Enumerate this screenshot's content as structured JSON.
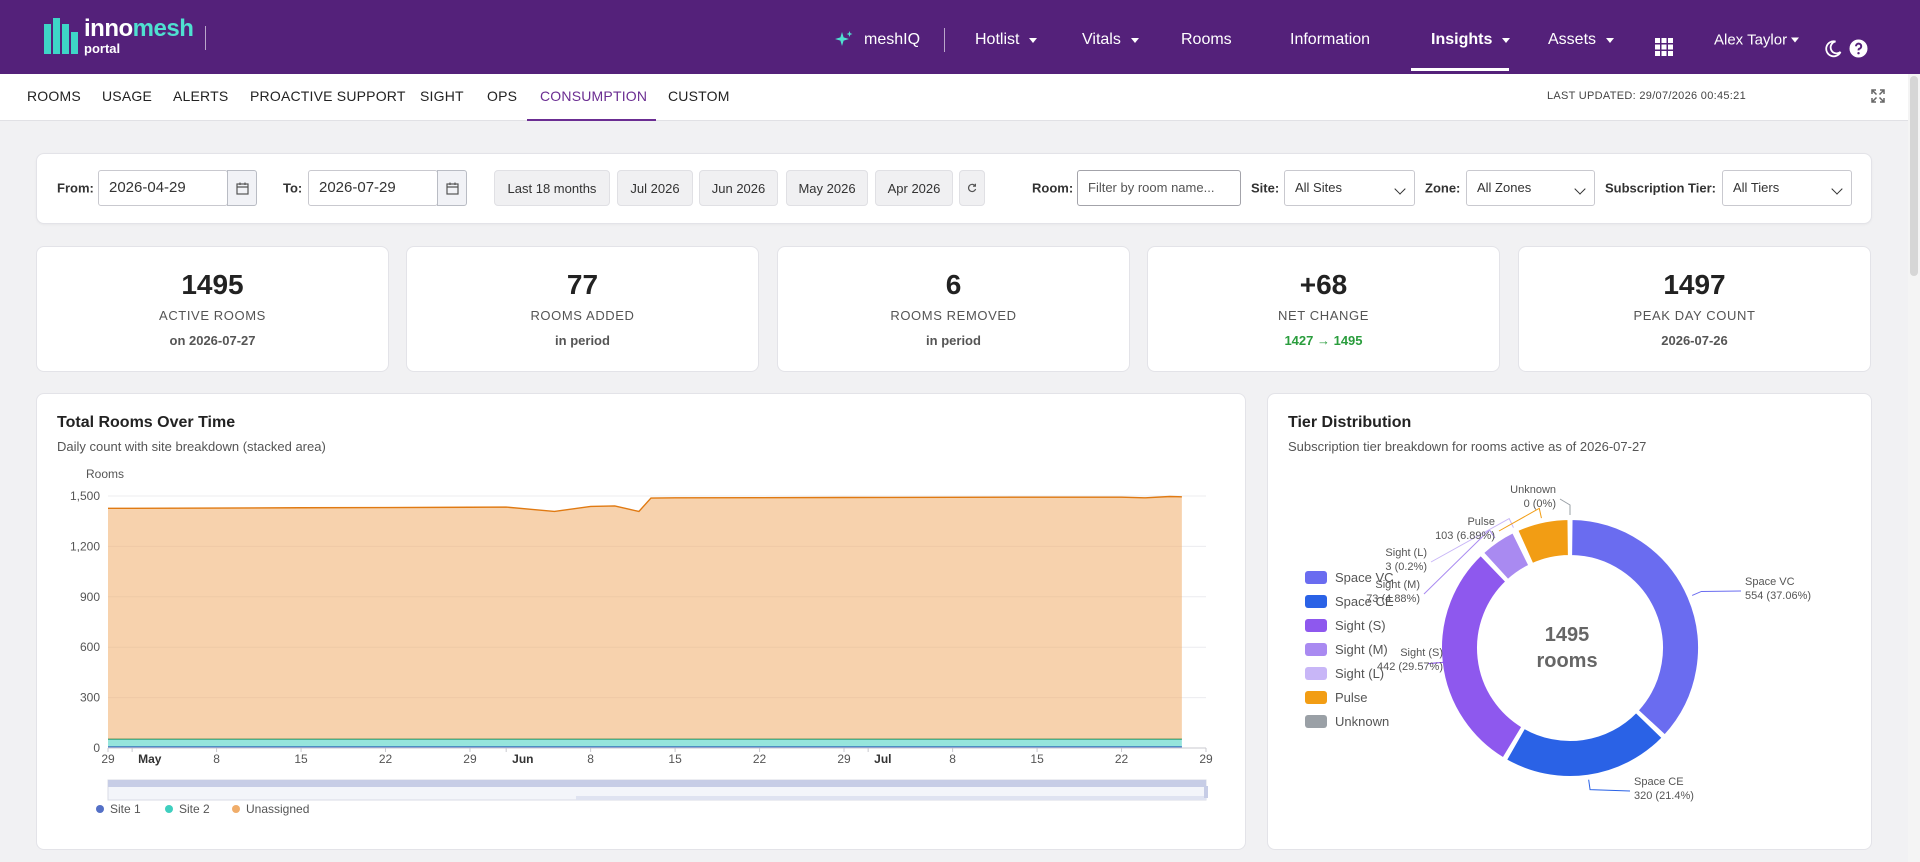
{
  "brand": {
    "name_a": "inno",
    "name_b": "mesh",
    "sub": "portal"
  },
  "topnav": {
    "meshiq": "meshIQ",
    "items": [
      {
        "label": "Hotlist",
        "dropdown": true
      },
      {
        "label": "Vitals",
        "dropdown": true
      },
      {
        "label": "Rooms",
        "dropdown": false
      },
      {
        "label": "Information",
        "dropdown": false
      },
      {
        "label": "Insights",
        "dropdown": true,
        "active": true
      },
      {
        "label": "Assets",
        "dropdown": true
      }
    ],
    "user": "Alex Taylor"
  },
  "subnav": {
    "items": [
      "ROOMS",
      "USAGE",
      "ALERTS",
      "PROACTIVE SUPPORT",
      "SIGHT",
      "OPS",
      "CONSUMPTION",
      "CUSTOM"
    ],
    "active": "CONSUMPTION",
    "last_updated": "LAST UPDATED: 29/07/2026 00:45:21"
  },
  "filters": {
    "from_label": "From:",
    "from_value": "2026-04-29",
    "to_label": "To:",
    "to_value": "2026-07-29",
    "presets": [
      "Last 18 months",
      "Jul 2026",
      "Jun 2026",
      "May 2026",
      "Apr 2026"
    ],
    "room_label": "Room:",
    "room_placeholder": "Filter by room name...",
    "site_label": "Site:",
    "site_value": "All Sites",
    "zone_label": "Zone:",
    "zone_value": "All Zones",
    "tier_label": "Subscription Tier:",
    "tier_value": "All Tiers"
  },
  "stats": [
    {
      "value": "1495",
      "label": "ACTIVE ROOMS",
      "sub": "on 2026-07-27"
    },
    {
      "value": "77",
      "label": "ROOMS ADDED",
      "sub": "in period"
    },
    {
      "value": "6",
      "label": "ROOMS REMOVED",
      "sub": "in period"
    },
    {
      "value": "+68",
      "label": "NET CHANGE",
      "sub": "1427 → 1495"
    },
    {
      "value": "1497",
      "label": "PEAK DAY COUNT",
      "sub": "2026-07-26"
    }
  ],
  "rooms_chart": {
    "title": "Total Rooms Over Time",
    "subtitle": "Daily count with site breakdown (stacked area)"
  },
  "tier_chart": {
    "title": "Tier Distribution",
    "subtitle": "Subscription tier breakdown for rooms active as of 2026-07-27",
    "center_value": "1495",
    "center_unit": "rooms"
  },
  "chart_data": [
    {
      "type": "area",
      "stacked": true,
      "ylabel": "Rooms",
      "ylim": [
        0,
        1500
      ],
      "yticks": [
        "0",
        "300",
        "600",
        "900",
        "1,200",
        "1,500"
      ],
      "xticks": [
        "29",
        "May",
        "8",
        "15",
        "22",
        "29",
        "Jun",
        "8",
        "15",
        "22",
        "29",
        "Jul",
        "8",
        "15",
        "22",
        "29"
      ],
      "x": [
        "2026-04-29",
        "2026-05-01",
        "2026-05-08",
        "2026-05-15",
        "2026-05-22",
        "2026-05-29",
        "2026-06-01",
        "2026-06-05",
        "2026-06-08",
        "2026-06-10",
        "2026-06-12",
        "2026-06-13",
        "2026-06-15",
        "2026-06-22",
        "2026-06-29",
        "2026-07-08",
        "2026-07-15",
        "2026-07-22",
        "2026-07-24",
        "2026-07-26",
        "2026-07-27"
      ],
      "series": [
        {
          "name": "Site 1",
          "color": "#5470c6",
          "values": [
            8,
            8,
            8,
            8,
            8,
            8,
            8,
            8,
            8,
            8,
            8,
            8,
            8,
            8,
            8,
            8,
            8,
            8,
            8,
            8,
            8
          ]
        },
        {
          "name": "Site 2",
          "color": "#3fcfbf",
          "values": [
            45,
            45,
            45,
            45,
            45,
            45,
            45,
            45,
            45,
            45,
            45,
            45,
            45,
            45,
            45,
            45,
            45,
            45,
            45,
            45,
            45
          ]
        },
        {
          "name": "Unassigned",
          "color": "#f0ad6a",
          "values": [
            1374,
            1374,
            1375,
            1377,
            1378,
            1380,
            1381,
            1355,
            1385,
            1388,
            1355,
            1435,
            1436,
            1437,
            1438,
            1439,
            1440,
            1440,
            1436,
            1444,
            1442
          ]
        }
      ],
      "legend_position": "bottom-left"
    },
    {
      "type": "pie",
      "donut": true,
      "legend": [
        "Space VC",
        "Space CE",
        "Sight (S)",
        "Sight (M)",
        "Sight (L)",
        "Pulse",
        "Unknown"
      ],
      "slices": [
        {
          "name": "Space VC",
          "value": 554,
          "label": "554 (37.06%)",
          "color": "#6a6cf0"
        },
        {
          "name": "Space CE",
          "value": 320,
          "label": "320 (21.4%)",
          "color": "#2a62e6"
        },
        {
          "name": "Sight (S)",
          "value": 442,
          "label": "442 (29.57%)",
          "color": "#8e58ee"
        },
        {
          "name": "Sight (M)",
          "value": 73,
          "label": "73 (4.88%)",
          "color": "#a98af1"
        },
        {
          "name": "Sight (L)",
          "value": 3,
          "label": "3 (0.2%)",
          "color": "#c8b6f7"
        },
        {
          "name": "Pulse",
          "value": 103,
          "label": "103 (6.89%)",
          "color": "#f29d14"
        },
        {
          "name": "Unknown",
          "value": 0,
          "label": "0 (0%)",
          "color": "#9aa0a6"
        }
      ]
    }
  ]
}
